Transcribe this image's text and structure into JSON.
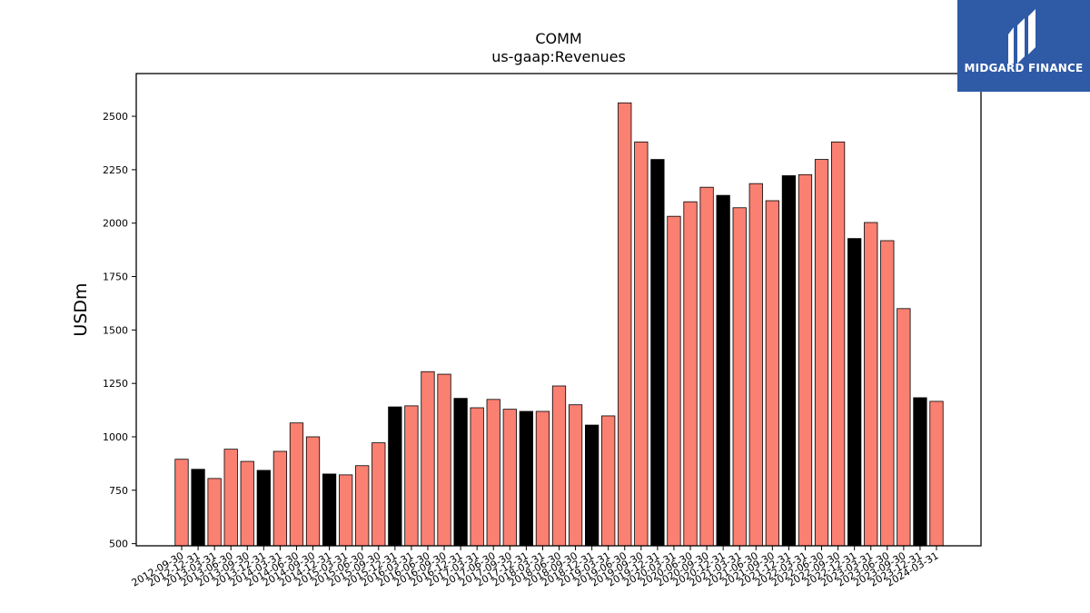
{
  "chart_data": {
    "type": "bar",
    "title": "COMM",
    "subtitle": "us-gaap:Revenues",
    "xlabel": "",
    "ylabel": "USDm",
    "ylim": [
      490,
      2700
    ],
    "yticks": [
      500,
      750,
      1000,
      1250,
      1500,
      1750,
      2000,
      2250,
      2500
    ],
    "grid": false,
    "categories": [
      "2012-09-30",
      "2012-12-31",
      "2013-03-31",
      "2013-06-30",
      "2013-09-30",
      "2013-12-31",
      "2014-03-31",
      "2014-06-30",
      "2014-09-30",
      "2014-12-31",
      "2015-03-31",
      "2015-06-30",
      "2015-09-30",
      "2015-12-31",
      "2016-03-31",
      "2016-06-30",
      "2016-09-30",
      "2016-12-31",
      "2017-03-31",
      "2017-06-30",
      "2017-09-30",
      "2017-12-31",
      "2018-03-31",
      "2018-06-30",
      "2018-09-30",
      "2018-12-31",
      "2019-03-31",
      "2019-06-30",
      "2019-09-30",
      "2019-12-31",
      "2020-03-31",
      "2020-06-30",
      "2020-09-30",
      "2020-12-31",
      "2021-03-31",
      "2021-06-30",
      "2021-09-30",
      "2021-12-31",
      "2022-03-31",
      "2022-06-30",
      "2022-09-30",
      "2022-12-31",
      "2023-03-31",
      "2023-06-30",
      "2023-09-30",
      "2023-12-31",
      "2024-03-31"
    ],
    "values": [
      895,
      848,
      805,
      942,
      885,
      843,
      932,
      1065,
      1000,
      826,
      822,
      865,
      972,
      1140,
      1145,
      1305,
      1293,
      1180,
      1136,
      1175,
      1129,
      1119,
      1119,
      1238,
      1150,
      1055,
      1098,
      2563,
      2380,
      2298,
      2032,
      2100,
      2168,
      2130,
      2072,
      2185,
      2105,
      2222,
      2227,
      2298,
      2380,
      1928,
      2003,
      1918,
      1600,
      1183,
      1166
    ],
    "bar_colors": [
      "#fa8072",
      "#000000",
      "#fa8072",
      "#fa8072",
      "#fa8072",
      "#000000",
      "#fa8072",
      "#fa8072",
      "#fa8072",
      "#000000",
      "#fa8072",
      "#fa8072",
      "#fa8072",
      "#000000",
      "#fa8072",
      "#fa8072",
      "#fa8072",
      "#000000",
      "#fa8072",
      "#fa8072",
      "#fa8072",
      "#000000",
      "#fa8072",
      "#fa8072",
      "#fa8072",
      "#000000",
      "#fa8072",
      "#fa8072",
      "#fa8072",
      "#000000",
      "#fa8072",
      "#fa8072",
      "#fa8072",
      "#000000",
      "#fa8072",
      "#fa8072",
      "#fa8072",
      "#000000",
      "#fa8072",
      "#fa8072",
      "#fa8072",
      "#000000",
      "#fa8072",
      "#fa8072",
      "#fa8072",
      "#000000",
      "#fa8072"
    ]
  },
  "logo": {
    "text": "MIDGARD FINANCE",
    "background": "#2f5aa6"
  }
}
